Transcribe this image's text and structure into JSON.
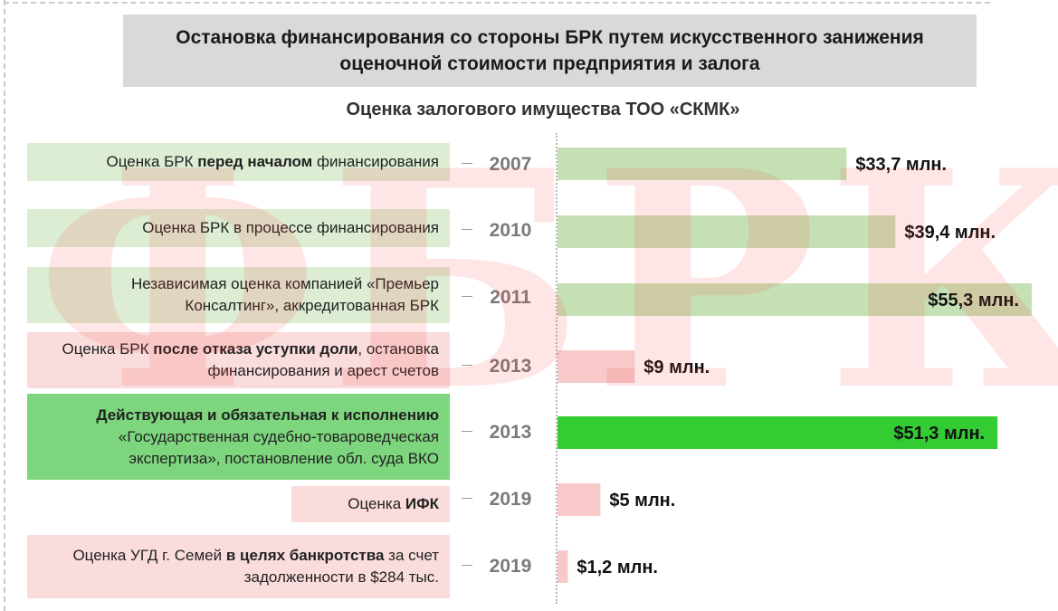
{
  "title": "Остановка финансирования со стороны БРК путем искусственного занижения оценочной стоимости предприятия и залога",
  "subtitle": "Оценка залогового имущества ТОО «СКМК»",
  "watermark": "ФБРК",
  "colors": {
    "green_light": "#dcedd3",
    "green_bar": "#c5e0b4",
    "green_bright": "#33cc33",
    "green_highlight": "#7dd67d",
    "pink_light": "#fadcdc",
    "pink_bar": "#f7c9c9"
  },
  "rows": [
    {
      "label_segments": [
        {
          "t": "Оценка БРК ",
          "b": false
        },
        {
          "t": "перед началом",
          "b": true
        },
        {
          "t": " финансирования",
          "b": false
        }
      ],
      "year": "2007",
      "value_label": "$33,7 млн."
    },
    {
      "label_segments": [
        {
          "t": "Оценка БРК в процессе финансирования",
          "b": false
        }
      ],
      "year": "2010",
      "value_label": "$39,4 млн."
    },
    {
      "label_segments": [
        {
          "t": "Независимая оценка компанией «Премьер Консалтинг», аккредитованная БРК",
          "b": false
        }
      ],
      "year": "2011",
      "value_label": "$55,3 млн."
    },
    {
      "label_segments": [
        {
          "t": "Оценка БРК ",
          "b": false
        },
        {
          "t": "после отказа уступки доли",
          "b": true
        },
        {
          "t": ", остановка финансирования и арест счетов",
          "b": false
        }
      ],
      "year": "2013",
      "value_label": "$9 млн."
    },
    {
      "label_segments": [
        {
          "t": "Действующая и обязательная к исполнению",
          "b": true
        },
        {
          "t": " «Государственная судебно-товароведческая экспертиза», постановление обл. суда ВКО",
          "b": false
        }
      ],
      "year": "2013",
      "value_label": "$51,3 млн."
    },
    {
      "label_segments": [
        {
          "t": "Оценка ",
          "b": false
        },
        {
          "t": "ИФК",
          "b": true
        }
      ],
      "year": "2019",
      "value_label": "$5 млн."
    },
    {
      "label_segments": [
        {
          "t": "Оценка УГД г. Семей ",
          "b": false
        },
        {
          "t": "в целях банкротства",
          "b": true
        },
        {
          "t": " за счет задолженности в $284 тыс.",
          "b": false
        }
      ],
      "year": "2019",
      "value_label": "$1,2 млн."
    }
  ],
  "chart_data": {
    "type": "bar",
    "orientation": "horizontal",
    "categories": [
      "2007",
      "2010",
      "2011",
      "2013",
      "2013",
      "2019",
      "2019"
    ],
    "values": [
      33.7,
      39.4,
      55.3,
      9,
      51.3,
      5,
      1.2
    ],
    "unit": "млн. $",
    "xlim": [
      0,
      55.3
    ]
  }
}
